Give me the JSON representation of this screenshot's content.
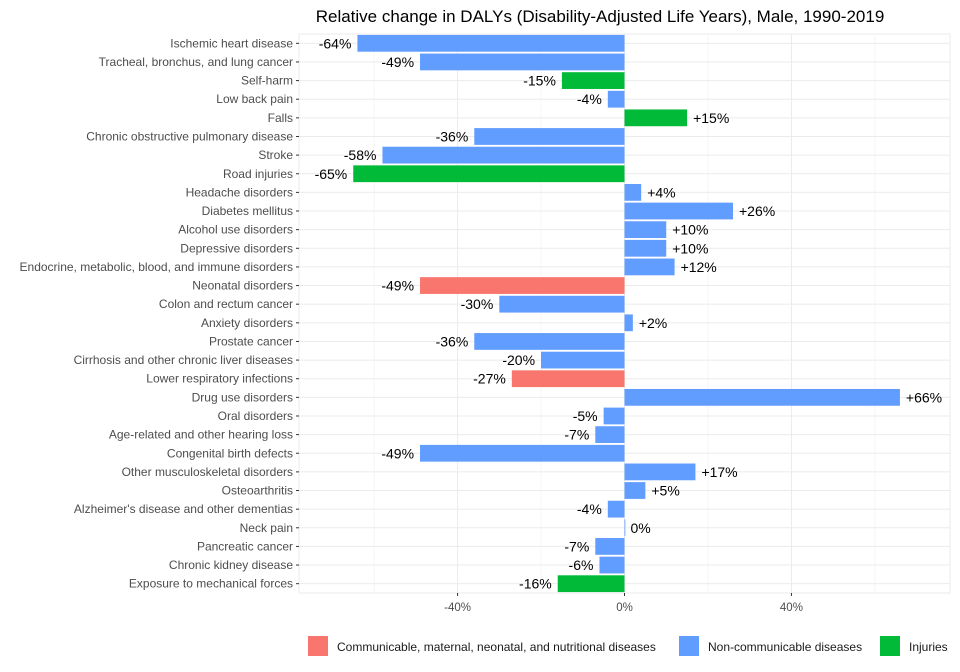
{
  "chart_data": {
    "type": "bar",
    "orientation": "horizontal",
    "title": "Relative change in DALYs (Disability-Adjusted Life Years), Male, 1990-2019",
    "xlabel": "",
    "ylabel": "",
    "xlim": [
      -78,
      78
    ],
    "xticks": [
      {
        "value": -40,
        "label": "-40%"
      },
      {
        "value": 0,
        "label": "0%"
      },
      {
        "value": 40,
        "label": "40%"
      }
    ],
    "grid": true,
    "legend_position": "bottom",
    "colors": {
      "Communicable, maternal, neonatal, and nutritional diseases": "#F8766D",
      "Non-communicable diseases": "#619CFF",
      "Injuries": "#00BA38"
    },
    "legend": [
      "Communicable, maternal, neonatal, and nutritional diseases",
      "Non-communicable diseases",
      "Injuries"
    ],
    "bars": [
      {
        "category": "Ischemic heart disease",
        "value": -64,
        "label": "-64%",
        "group": "Non-communicable diseases"
      },
      {
        "category": "Tracheal, bronchus, and lung cancer",
        "value": -49,
        "label": "-49%",
        "group": "Non-communicable diseases"
      },
      {
        "category": "Self-harm",
        "value": -15,
        "label": "-15%",
        "group": "Injuries"
      },
      {
        "category": "Low back pain",
        "value": -4,
        "label": "-4%",
        "group": "Non-communicable diseases"
      },
      {
        "category": "Falls",
        "value": 15,
        "label": "+15%",
        "group": "Injuries"
      },
      {
        "category": "Chronic obstructive pulmonary disease",
        "value": -36,
        "label": "-36%",
        "group": "Non-communicable diseases"
      },
      {
        "category": "Stroke",
        "value": -58,
        "label": "-58%",
        "group": "Non-communicable diseases"
      },
      {
        "category": "Road injuries",
        "value": -65,
        "label": "-65%",
        "group": "Injuries"
      },
      {
        "category": "Headache disorders",
        "value": 4,
        "label": "+4%",
        "group": "Non-communicable diseases"
      },
      {
        "category": "Diabetes mellitus",
        "value": 26,
        "label": "+26%",
        "group": "Non-communicable diseases"
      },
      {
        "category": "Alcohol use disorders",
        "value": 10,
        "label": "+10%",
        "group": "Non-communicable diseases"
      },
      {
        "category": "Depressive disorders",
        "value": 10,
        "label": "+10%",
        "group": "Non-communicable diseases"
      },
      {
        "category": "Endocrine, metabolic, blood, and immune disorders",
        "value": 12,
        "label": "+12%",
        "group": "Non-communicable diseases"
      },
      {
        "category": "Neonatal disorders",
        "value": -49,
        "label": "-49%",
        "group": "Communicable, maternal, neonatal, and nutritional diseases"
      },
      {
        "category": "Colon and rectum cancer",
        "value": -30,
        "label": "-30%",
        "group": "Non-communicable diseases"
      },
      {
        "category": "Anxiety disorders",
        "value": 2,
        "label": "+2%",
        "group": "Non-communicable diseases"
      },
      {
        "category": "Prostate cancer",
        "value": -36,
        "label": "-36%",
        "group": "Non-communicable diseases"
      },
      {
        "category": "Cirrhosis and other chronic liver diseases",
        "value": -20,
        "label": "-20%",
        "group": "Non-communicable diseases"
      },
      {
        "category": "Lower respiratory infections",
        "value": -27,
        "label": "-27%",
        "group": "Communicable, maternal, neonatal, and nutritional diseases"
      },
      {
        "category": "Drug use disorders",
        "value": 66,
        "label": "+66%",
        "group": "Non-communicable diseases"
      },
      {
        "category": "Oral disorders",
        "value": -5,
        "label": "-5%",
        "group": "Non-communicable diseases"
      },
      {
        "category": "Age-related and other hearing loss",
        "value": -7,
        "label": "-7%",
        "group": "Non-communicable diseases"
      },
      {
        "category": "Congenital birth defects",
        "value": -49,
        "label": "-49%",
        "group": "Non-communicable diseases"
      },
      {
        "category": "Other musculoskeletal disorders",
        "value": 17,
        "label": "+17%",
        "group": "Non-communicable diseases"
      },
      {
        "category": "Osteoarthritis",
        "value": 5,
        "label": "+5%",
        "group": "Non-communicable diseases"
      },
      {
        "category": "Alzheimer's disease and other dementias",
        "value": -4,
        "label": "-4%",
        "group": "Non-communicable diseases"
      },
      {
        "category": "Neck pain",
        "value": 0,
        "label": "0%",
        "group": "Non-communicable diseases"
      },
      {
        "category": "Pancreatic cancer",
        "value": -7,
        "label": "-7%",
        "group": "Non-communicable diseases"
      },
      {
        "category": "Chronic kidney disease",
        "value": -6,
        "label": "-6%",
        "group": "Non-communicable diseases"
      },
      {
        "category": "Exposure to mechanical forces",
        "value": -16,
        "label": "-16%",
        "group": "Injuries"
      }
    ]
  }
}
